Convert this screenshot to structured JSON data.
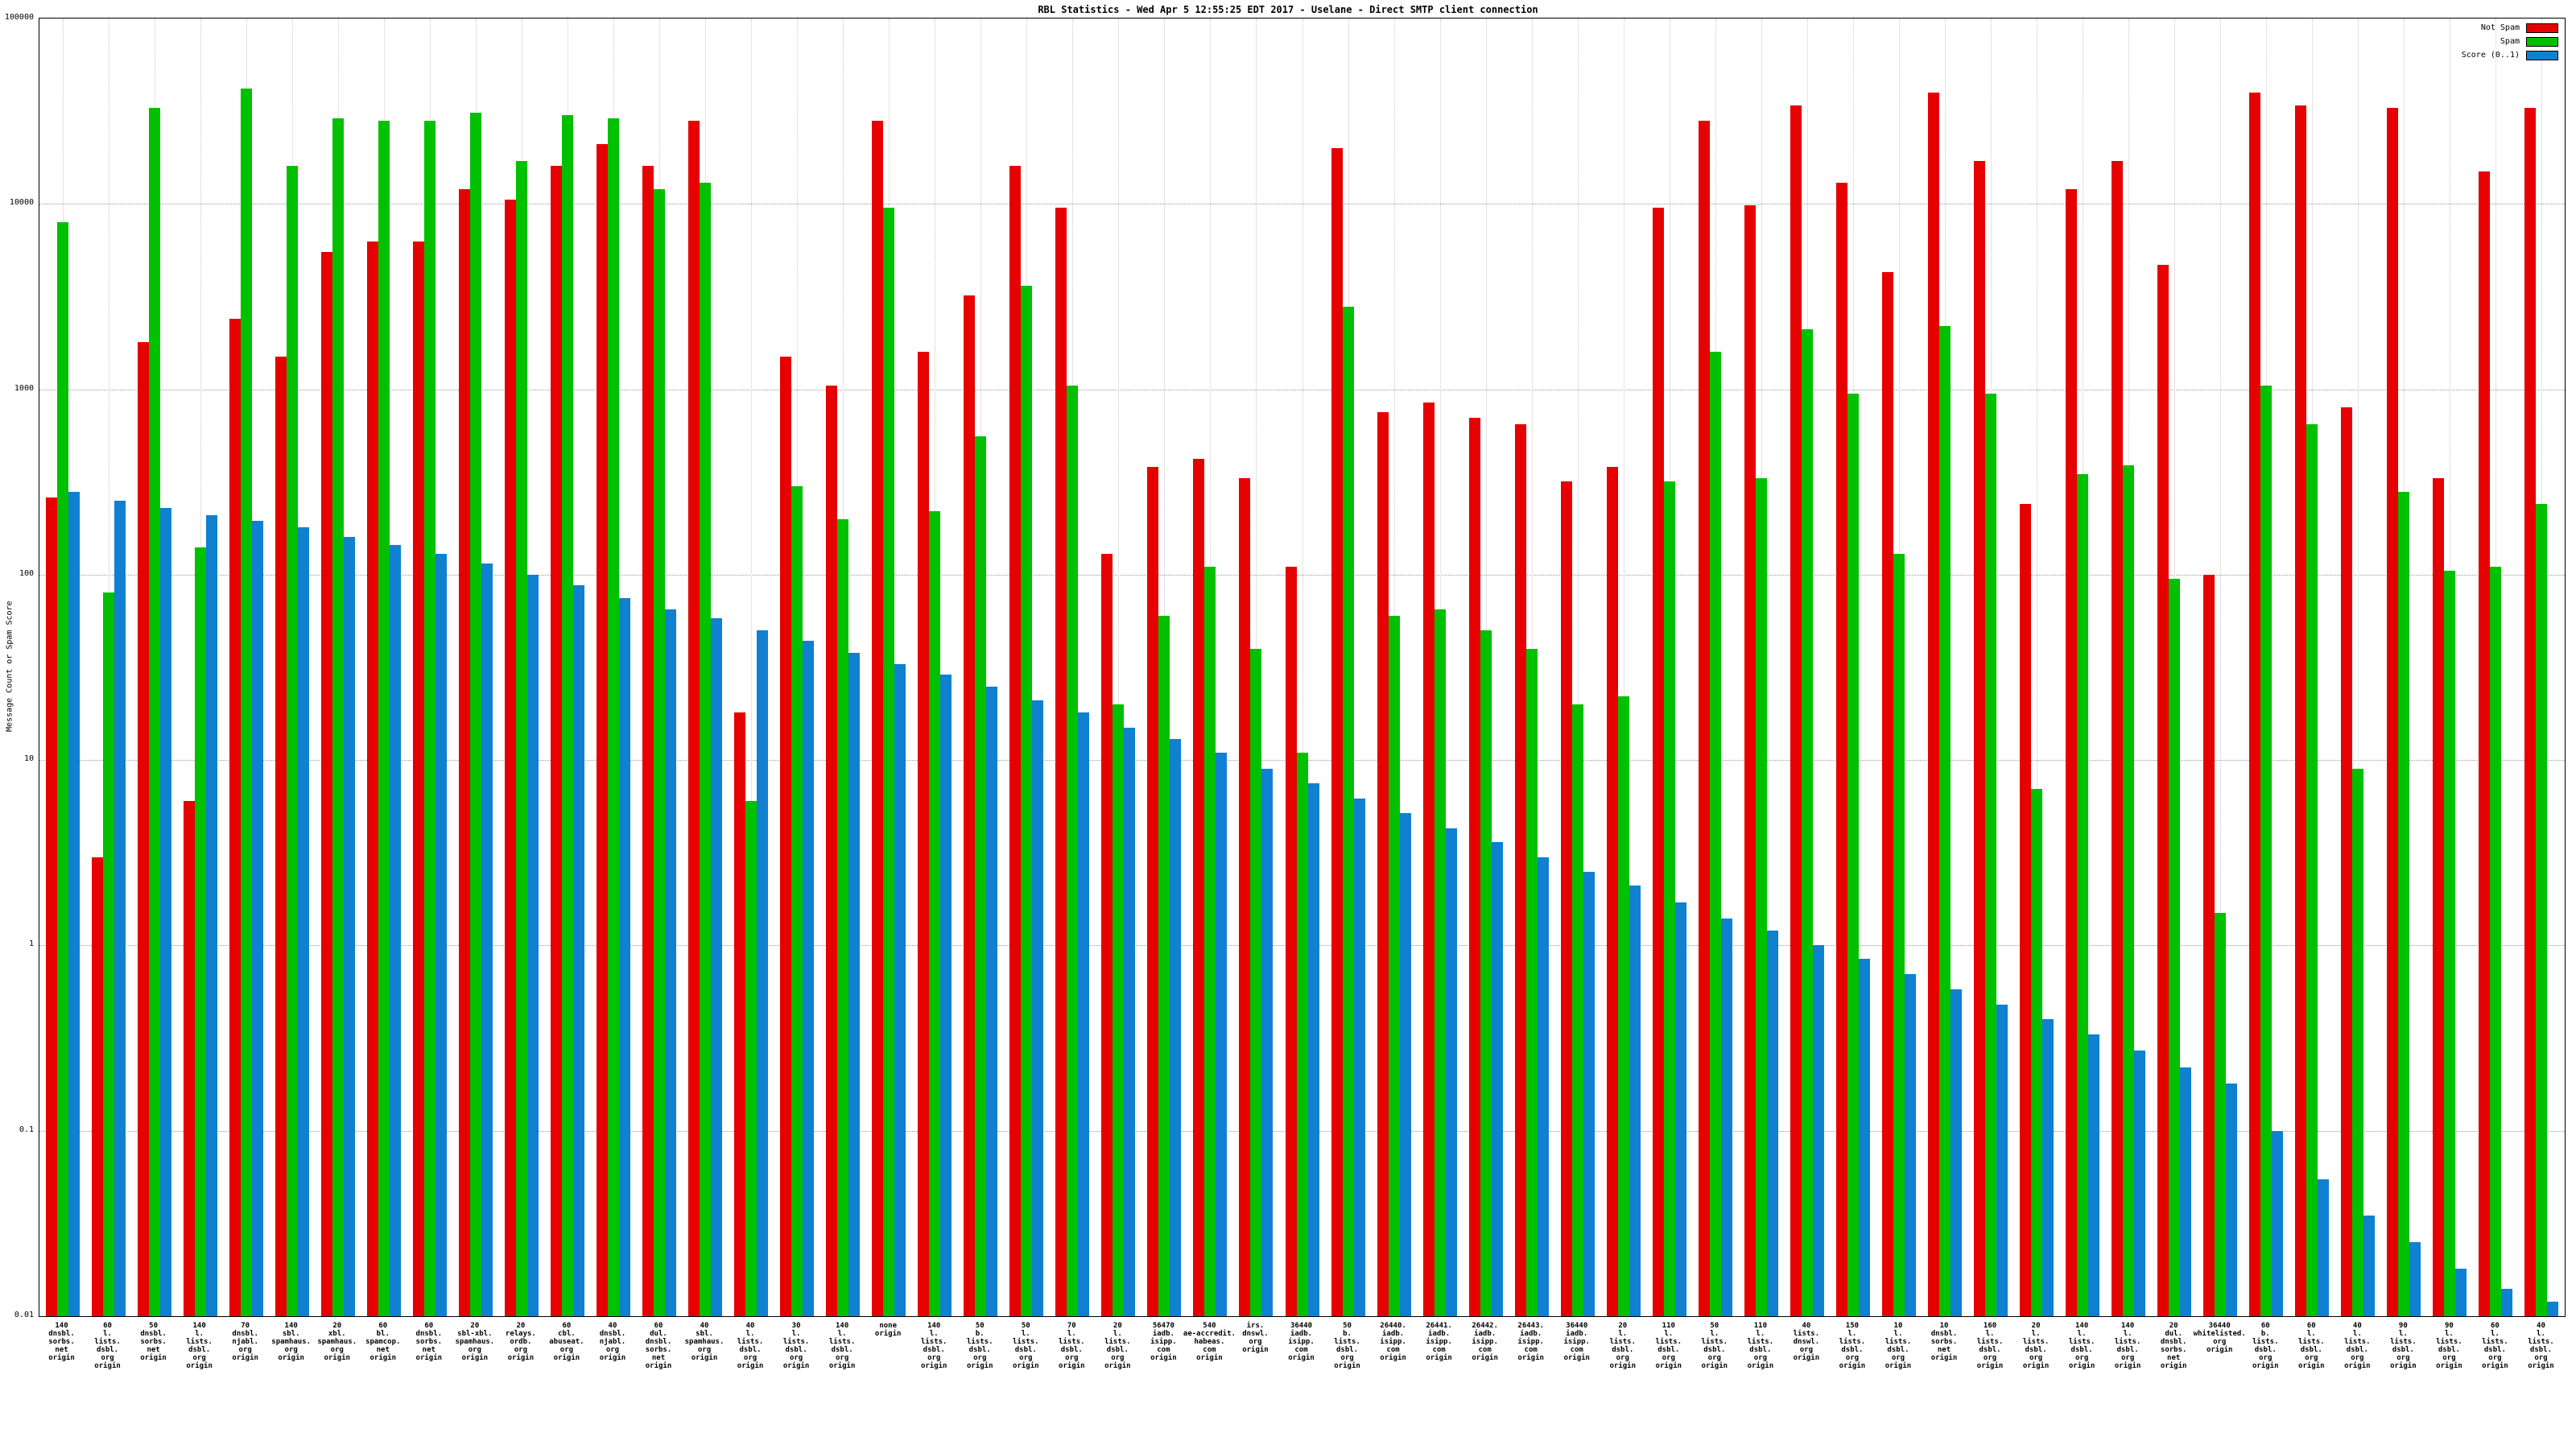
{
  "title": "RBL Statistics - Wed Apr  5 12:55:25 EDT 2017 - Uselane - Direct SMTP client connection",
  "ylabel": "Message Count or Spam Score",
  "legend": [
    {
      "label": "Not Spam",
      "color": "#e60000"
    },
    {
      "label": "Spam",
      "color": "#00c000"
    },
    {
      "label": "Score (0..1)",
      "color": "#1080d0"
    }
  ],
  "chart_data": {
    "type": "bar",
    "scale": "log",
    "title": "RBL Statistics - Wed Apr  5 12:55:25 EDT 2017 - Uselane - Direct SMTP client connection",
    "ylabel": "Message Count or Spam Score",
    "ylim": [
      0.01,
      100000
    ],
    "y_ticks": [
      100000,
      10000,
      1000,
      100,
      10,
      1,
      0.1,
      0.01
    ],
    "grid": true,
    "legend_position": "top-right",
    "categories": [
      "140\ndnsbl.\nsorbs.\nnet\norigin",
      "60\nl.\nlists.\ndsbl.\norg\norigin",
      "50\ndnsbl.\nsorbs.\nnet\norigin",
      "140\nl.\nlists.\ndsbl.\norg\norigin",
      "70\ndnsbl.\nnjabl.\norg\norigin",
      "140\nsbl.\nspamhaus.\norg\norigin",
      "20\nxbl.\nspamhaus.\norg\norigin",
      "60\nbl.\nspamcop.\nnet\norigin",
      "60\ndnsbl.\nsorbs.\nnet\norigin",
      "20\nsbl-xbl.\nspamhaus.\norg\norigin",
      "20\nrelays.\nordb.\norg\norigin",
      "60\ncbl.\nabuseat.\norg\norigin",
      "40\ndnsbl.\nnjabl.\norg\norigin",
      "60\ndul.\ndnsbl.\nsorbs.\nnet\norigin",
      "40\nsbl.\nspamhaus.\norg\norigin",
      "40\nl.\nlists.\ndsbl.\norg\norigin",
      "30\nl.\nlists.\ndsbl.\norg\norigin",
      "140\nl.\nlists.\ndsbl.\norg\norigin",
      "none\norigin",
      "140\nl.\nlists.\ndsbl.\norg\norigin",
      "50\nb.\nlists.\ndsbl.\norg\norigin",
      "50\nl.\nlists.\ndsbl.\norg\norigin",
      "70\nl.\nlists.\ndsbl.\norg\norigin",
      "20\nl.\nlists.\ndsbl.\norg\norigin",
      "56470\niadb.\nisipp.\ncom\norigin",
      "540\nae-accredit.\nhabeas.\ncom\norigin",
      "irs.\ndnswl.\norg\norigin",
      "36440\niadb.\nisipp.\ncom\norigin",
      "50\nb.\nlists.\ndsbl.\norg\norigin",
      "26440.\niadb.\nisipp.\ncom\norigin",
      "26441.\niadb.\nisipp.\ncom\norigin",
      "26442.\niadb.\nisipp.\ncom\norigin",
      "26443.\niadb.\nisipp.\ncom\norigin",
      "36440\niadb.\nisipp.\ncom\norigin",
      "20\nl.\nlists.\ndsbl.\norg\norigin",
      "110\nl.\nlists.\ndsbl.\norg\norigin",
      "50\nl.\nlists.\ndsbl.\norg\norigin",
      "110\nl.\nlists.\ndsbl.\norg\norigin",
      "40\nlists.\ndnswl.\norg\norigin",
      "150\nl.\nlists.\ndsbl.\norg\norigin",
      "10\nl.\nlists.\ndsbl.\norg\norigin",
      "10\ndnsbl.\nsorbs.\nnet\norigin",
      "160\nl.\nlists.\ndsbl.\norg\norigin",
      "20\nl.\nlists.\ndsbl.\norg\norigin",
      "140\nl.\nlists.\ndsbl.\norg\norigin",
      "140\nl.\nlists.\ndsbl.\norg\norigin",
      "20\ndul.\ndnsbl.\nsorbs.\nnet\norigin",
      "36440\nwhitelisted.\norg\norigin",
      "60\nb.\nlists.\ndsbl.\norg\norigin",
      "60\nl.\nlists.\ndsbl.\norg\norigin",
      "40\nl.\nlists.\ndsbl.\norg\norigin",
      "90\nl.\nlists.\ndsbl.\norg\norigin",
      "90\nl.\nlists.\ndsbl.\norg\norigin",
      "60\nl.\nlists.\ndsbl.\norg\norigin",
      "40\nl.\nlists.\ndsbl.\norg\norigin"
    ],
    "series": [
      {
        "name": "Not Spam",
        "color": "#e60000",
        "values": [
          260,
          3,
          1800,
          6,
          2400,
          1500,
          5500,
          6300,
          6300,
          12000,
          10500,
          16000,
          21000,
          16000,
          28000,
          18,
          1500,
          1050,
          28000,
          1600,
          3200,
          16000,
          9500,
          130,
          380,
          420,
          330,
          110,
          20000,
          750,
          850,
          700,
          650,
          320,
          380,
          9500,
          28000,
          9800,
          34000,
          13000,
          4300,
          40000,
          17000,
          240,
          12000,
          17000,
          4700,
          100,
          40000,
          34000,
          800,
          33000,
          330,
          15000,
          33000
        ]
      },
      {
        "name": "Spam",
        "color": "#00c000",
        "values": [
          8000,
          80,
          33000,
          140,
          42000,
          16000,
          29000,
          28000,
          28000,
          31000,
          17000,
          30000,
          29000,
          12000,
          13000,
          6,
          300,
          200,
          9500,
          220,
          560,
          3600,
          1050,
          20,
          60,
          110,
          40,
          11,
          2800,
          60,
          65,
          50,
          40,
          20,
          22,
          320,
          1600,
          330,
          2100,
          950,
          130,
          2200,
          950,
          7,
          350,
          390,
          95,
          1.5,
          1050,
          650,
          9,
          280,
          105,
          110,
          240
        ]
      },
      {
        "name": "Score (0..1)",
        "color": "#1080d0",
        "values": [
          281,
          250,
          230,
          210,
          195,
          180,
          160,
          145,
          130,
          115,
          100,
          88,
          75,
          65,
          58,
          50,
          44,
          38,
          33,
          29,
          25,
          21,
          18,
          15,
          13,
          11,
          9,
          7.5,
          6.2,
          5.2,
          4.3,
          3.6,
          3.0,
          2.5,
          2.1,
          1.7,
          1.4,
          1.2,
          1.0,
          0.85,
          0.7,
          0.58,
          0.48,
          0.4,
          0.33,
          0.27,
          0.22,
          0.18,
          0.1,
          0.055,
          0.035,
          0.025,
          0.018,
          0.014,
          0.012
        ]
      }
    ]
  }
}
